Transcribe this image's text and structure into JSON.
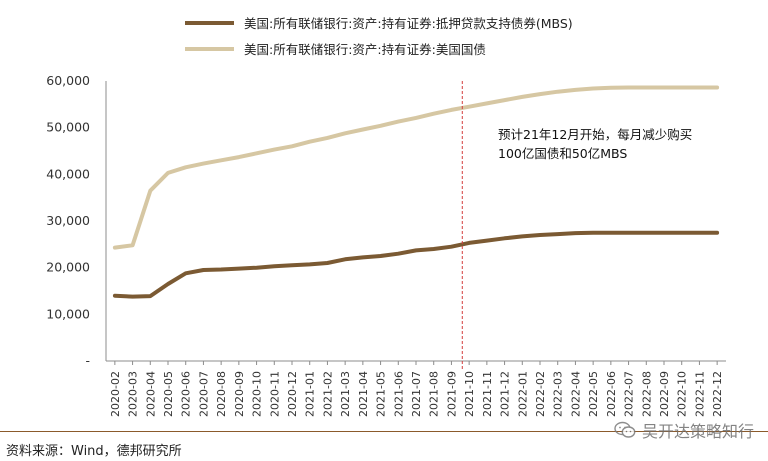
{
  "chart_data": {
    "type": "line",
    "title": "",
    "xlabel": "",
    "ylabel": "",
    "ylim": [
      0,
      60000
    ],
    "yticks": [
      "60,000",
      "50,000",
      "40,000",
      "30,000",
      "20,000",
      "10,000",
      "-"
    ],
    "grid": false,
    "legend_position": "top-left",
    "categories": [
      "2020-02",
      "2020-03",
      "2020-04",
      "2020-05",
      "2020-06",
      "2020-07",
      "2020-08",
      "2020-09",
      "2020-10",
      "2020-11",
      "2020-12",
      "2021-01",
      "2021-02",
      "2021-03",
      "2021-04",
      "2021-05",
      "2021-06",
      "2021-07",
      "2021-08",
      "2021-09",
      "2021-10",
      "2021-11",
      "2021-12",
      "2022-01",
      "2022-02",
      "2022-03",
      "2022-04",
      "2022-05",
      "2022-06",
      "2022-07",
      "2022-08",
      "2022-09",
      "2022-10",
      "2022-11",
      "2022-12"
    ],
    "series": [
      {
        "name": "美国:所有联储银行:资产:持有证券:抵押贷款支持债券(MBS)",
        "color": "#7b5a33",
        "values": [
          14000,
          13800,
          13900,
          16500,
          18800,
          19500,
          19600,
          19800,
          20000,
          20300,
          20500,
          20700,
          21000,
          21800,
          22200,
          22500,
          23000,
          23700,
          24000,
          24500,
          25300,
          25800,
          26300,
          26700,
          27000,
          27200,
          27400,
          27500,
          27500,
          27500,
          27500,
          27500,
          27500,
          27500,
          27500
        ]
      },
      {
        "name": "美国:所有联储银行:资产:持有证券:美国国债",
        "color": "#d6c7a3",
        "values": [
          24300,
          24800,
          36500,
          40300,
          41500,
          42300,
          43000,
          43700,
          44500,
          45300,
          46000,
          47000,
          47800,
          48800,
          49600,
          50400,
          51300,
          52100,
          53000,
          53800,
          54500,
          55200,
          55900,
          56600,
          57200,
          57700,
          58100,
          58400,
          58550,
          58600,
          58600,
          58600,
          58600,
          58600,
          58600
        ]
      }
    ],
    "divider": {
      "at": "2021-10",
      "color": "#d43c3c",
      "style": "dashed"
    },
    "annotation": {
      "lines": [
        "预计21年12月开始，每月减少购买",
        "100亿国债和50亿MBS"
      ]
    }
  },
  "footer": {
    "source": "资料来源：Wind，德邦研究所",
    "watermark": "吴开达策略知行",
    "rule_color": "#8b5a2b"
  }
}
